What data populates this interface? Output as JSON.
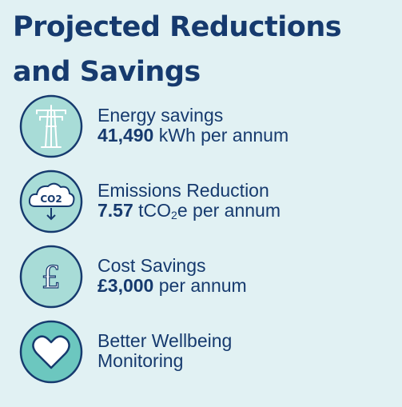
{
  "title_line1": "Projected Reductions",
  "title_line2": "and Savings",
  "items": [
    {
      "icon": "pylon-icon",
      "label": "Energy savings",
      "value_bold": "41,490",
      "value_rest": " kWh per annum"
    },
    {
      "icon": "co2-cloud-icon",
      "label": "Emissions Reduction",
      "value_bold": "7.57",
      "value_unit_pre": " tCO",
      "value_unit_sub": "2",
      "value_rest": "e per annum",
      "icon_text": "CO2"
    },
    {
      "icon": "pound-icon",
      "label": "Cost Savings",
      "value_bold": "£3,000",
      "value_rest": " per annum",
      "icon_text": "£"
    },
    {
      "icon": "heart-icon",
      "label": "Better Wellbeing",
      "label2": "Monitoring"
    }
  ],
  "colors": {
    "background": "#e1f1f3",
    "circle_fill": "#a8dcd7",
    "heart_circle_fill": "#6cc7bf",
    "navy": "#163a6e"
  }
}
